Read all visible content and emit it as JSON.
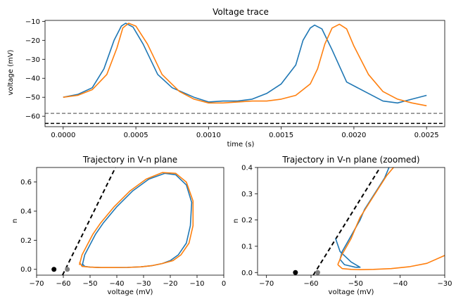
{
  "colors": {
    "trace1": "#1f77b4",
    "trace2": "#ff7f0e",
    "threshold": "#808080",
    "rest": "#000000"
  },
  "chart_data": [
    {
      "type": "line",
      "title": "Voltage trace",
      "xlabel": "time (s)",
      "ylabel": "voltage (mV)",
      "xlim": [
        -0.000125,
        0.002625
      ],
      "ylim": [
        -65.5,
        -9.5
      ],
      "xticks": [
        "0.0000",
        "0.0005",
        "0.0010",
        "0.0015",
        "0.0020",
        "0.0025"
      ],
      "yticks": [
        "-10",
        "-20",
        "-30",
        "-40",
        "-50",
        "-60"
      ],
      "hlines": [
        {
          "y": -58.5,
          "style": "dashed",
          "color": "#808080"
        },
        {
          "y": -63.8,
          "style": "dashed",
          "color": "#000000"
        }
      ],
      "series": [
        {
          "color": "#1f77b4",
          "x": [
            0.0,
            0.0001,
            0.0002,
            0.00028,
            0.00035,
            0.0004,
            0.00043,
            0.00048,
            0.00055,
            0.00065,
            0.00075,
            0.0009,
            0.001,
            0.0011,
            0.0012,
            0.0013,
            0.0014,
            0.0015,
            0.0016,
            0.00165,
            0.0017,
            0.00173,
            0.00178,
            0.00185,
            0.00195,
            0.0021,
            0.0022,
            0.0023,
            0.0024,
            0.0025
          ],
          "y": [
            -50,
            -48.5,
            -45,
            -35,
            -20,
            -12.5,
            -11,
            -13,
            -22,
            -38,
            -45,
            -50,
            -52.5,
            -52,
            -52,
            -51,
            -48,
            -43,
            -33,
            -20,
            -13.5,
            -12,
            -14,
            -25,
            -42,
            -48,
            -52,
            -53,
            -51,
            -49
          ]
        },
        {
          "color": "#ff7f0e",
          "x": [
            0.0,
            0.0001,
            0.0002,
            0.0003,
            0.00037,
            0.00041,
            0.00045,
            0.0005,
            0.00058,
            0.00068,
            0.0008,
            0.0009,
            0.001,
            0.0011,
            0.0012,
            0.0013,
            0.0014,
            0.0015,
            0.0016,
            0.0017,
            0.00175,
            0.0018,
            0.00185,
            0.0019,
            0.00195,
            0.002,
            0.0021,
            0.0022,
            0.0023,
            0.0024,
            0.0025
          ],
          "y": [
            -50,
            -49,
            -46,
            -38,
            -24,
            -13.5,
            -11,
            -12.5,
            -22,
            -38,
            -47,
            -51,
            -53,
            -53,
            -52.5,
            -52,
            -52,
            -51,
            -49,
            -43,
            -35,
            -22,
            -13.5,
            -11.5,
            -14,
            -23,
            -38,
            -47,
            -51,
            -53,
            -54.5
          ]
        }
      ]
    },
    {
      "type": "line",
      "title": "Trajectory in V-n plane",
      "xlabel": "voltage (mV)",
      "ylabel": "n",
      "xlim": [
        -70,
        0
      ],
      "ylim": [
        -0.04,
        0.7
      ],
      "xticks": [
        "-70",
        "-60",
        "-50",
        "-40",
        "-30",
        "-20",
        "-10",
        "0"
      ],
      "yticks": [
        "0.0",
        "0.2",
        "0.4",
        "0.6"
      ],
      "markers": [
        {
          "x": -63.5,
          "y": 0.0,
          "color": "#000000"
        },
        {
          "x": -58.5,
          "y": 0.0,
          "color": "#808080"
        }
      ],
      "lines": [
        {
          "points": [
            [
              -60.3,
              -0.04
            ],
            [
              -40.5,
              0.7
            ]
          ],
          "style": "dashed",
          "color": "#000000"
        }
      ],
      "series": [
        {
          "color": "#1f77b4",
          "x": [
            -53,
            -52,
            -50,
            -48,
            -45,
            -40,
            -34,
            -28,
            -22,
            -18,
            -14,
            -12,
            -12.5,
            -14,
            -17,
            -20,
            -23,
            -27,
            -31,
            -36,
            -41,
            -46,
            -50,
            -52,
            -53
          ],
          "y": [
            0.02,
            0.1,
            0.17,
            0.24,
            0.32,
            0.43,
            0.54,
            0.62,
            0.66,
            0.65,
            0.58,
            0.46,
            0.3,
            0.18,
            0.1,
            0.06,
            0.04,
            0.025,
            0.017,
            0.013,
            0.012,
            0.012,
            0.015,
            0.02,
            0.04
          ]
        },
        {
          "color": "#ff7f0e",
          "x": [
            -54,
            -53,
            -51,
            -49,
            -46,
            -41,
            -35,
            -29,
            -23,
            -18,
            -14,
            -11.5,
            -11.5,
            -13,
            -16,
            -19,
            -23,
            -27,
            -31,
            -36,
            -41,
            -46,
            -50,
            -53,
            -54
          ],
          "y": [
            0.03,
            0.1,
            0.17,
            0.24,
            0.32,
            0.43,
            0.54,
            0.62,
            0.665,
            0.66,
            0.6,
            0.47,
            0.3,
            0.18,
            0.1,
            0.06,
            0.04,
            0.025,
            0.017,
            0.013,
            0.012,
            0.012,
            0.015,
            0.02,
            0.05
          ]
        }
      ]
    },
    {
      "type": "line",
      "title": "Trajectory in V-n plane (zoomed)",
      "xlabel": "voltage (mV)",
      "ylabel": "n",
      "xlim": [
        -72,
        -30
      ],
      "ylim": [
        -0.01,
        0.4
      ],
      "xticks": [
        "-70",
        "-60",
        "-50",
        "-40",
        "-30"
      ],
      "yticks": [
        "0.0",
        "0.1",
        "0.2",
        "0.3",
        "0.4"
      ],
      "markers": [
        {
          "x": -63.5,
          "y": 0.0,
          "color": "#000000"
        },
        {
          "x": -58.5,
          "y": 0.0,
          "color": "#808080"
        }
      ],
      "lines": [
        {
          "points": [
            [
              -59.5,
              -0.01
            ],
            [
              -44.5,
              0.4
            ]
          ],
          "style": "dashed",
          "color": "#000000"
        }
      ],
      "series": [
        {
          "color": "#1f77b4",
          "x": [
            -50,
            -52.5,
            -53.5,
            -53,
            -52,
            -51,
            -50,
            -49,
            -48,
            -46.5,
            -45,
            -43.5,
            -42.5
          ],
          "y": [
            0.02,
            0.03,
            0.05,
            0.08,
            0.11,
            0.14,
            0.17,
            0.2,
            0.24,
            0.28,
            0.32,
            0.36,
            0.4
          ]
        },
        {
          "color": "#1f77b4",
          "x": [
            -54.5,
            -53.5,
            -51,
            -49.5,
            -49,
            -50
          ],
          "y": [
            0.13,
            0.08,
            0.04,
            0.025,
            0.02,
            0.02
          ]
        },
        {
          "color": "#ff7f0e",
          "x": [
            -54,
            -53,
            -52,
            -51,
            -50,
            -49,
            -47.5,
            -46,
            -44.5,
            -43,
            -41.5
          ],
          "y": [
            0.03,
            0.07,
            0.1,
            0.13,
            0.17,
            0.21,
            0.25,
            0.29,
            0.33,
            0.37,
            0.4
          ]
        },
        {
          "color": "#ff7f0e",
          "x": [
            -54,
            -53,
            -51,
            -49,
            -46,
            -42,
            -38,
            -34,
            -30
          ],
          "y": [
            0.03,
            0.015,
            0.012,
            0.011,
            0.012,
            0.015,
            0.022,
            0.035,
            0.065
          ]
        }
      ]
    }
  ]
}
